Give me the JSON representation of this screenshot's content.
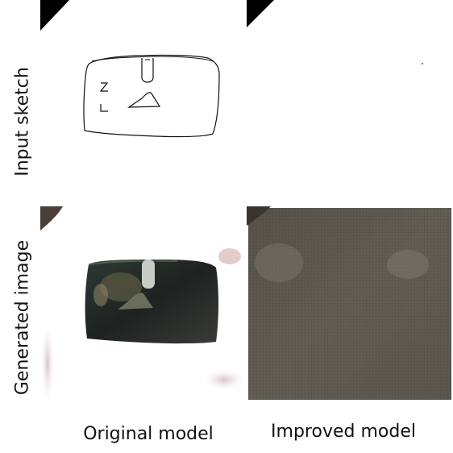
{
  "row_labels": {
    "top": "Input sketch",
    "bottom": "Generated image"
  },
  "column_labels": {
    "left": "Original model",
    "right": "Improved model"
  },
  "colors": {
    "background": "#ffffff",
    "corner_black": "#000000",
    "bag_dark": "#2a2d28",
    "improved_gray": "#5e5a50"
  }
}
